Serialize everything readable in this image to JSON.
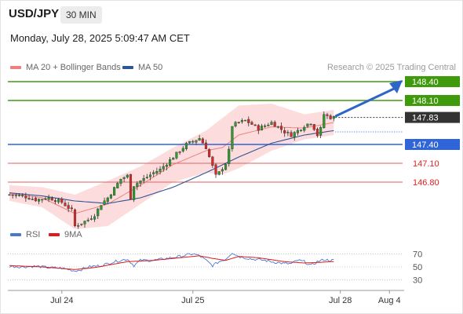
{
  "header": {
    "symbol": "USD/JPY",
    "timeframe": "30 MIN",
    "datetime": "Monday, July 28, 2025 5:09:47 AM CET"
  },
  "legend": {
    "ma20": {
      "label": "MA 20 + Bollinger Bands",
      "color": "#f08080"
    },
    "ma50": {
      "label": "MA 50",
      "color": "#2f5597"
    },
    "credit": "Research © 2025 Trading Central"
  },
  "rsi_legend": {
    "rsi": {
      "label": "RSI",
      "color": "#4a78d0"
    },
    "ma9": {
      "label": "9MA",
      "color": "#e01919"
    }
  },
  "chart_data": [
    {
      "type": "candlestick",
      "x_ticks": [
        "Jul 24",
        "Jul 25",
        "Jul 28",
        "Aug 4"
      ],
      "ylim": [
        146.2,
        148.5
      ],
      "current_price": "147.83",
      "levels": [
        {
          "value": 148.4,
          "label": "148.40",
          "kind": "resistance"
        },
        {
          "value": 148.1,
          "label": "148.10",
          "kind": "resistance"
        },
        {
          "value": 147.4,
          "label": "147.40",
          "kind": "pivot"
        },
        {
          "value": 147.1,
          "label": "147.10",
          "kind": "support"
        },
        {
          "value": 146.8,
          "label": "146.80",
          "kind": "support"
        }
      ],
      "forecast": {
        "from": 147.83,
        "to": 148.4
      },
      "close_points": [
        [
          0,
          146.6
        ],
        [
          4,
          146.58
        ],
        [
          8,
          146.52
        ],
        [
          12,
          146.55
        ],
        [
          16,
          146.48
        ],
        [
          19,
          146.35
        ],
        [
          20,
          146.1
        ],
        [
          22,
          146.15
        ],
        [
          24,
          146.2
        ],
        [
          26,
          146.28
        ],
        [
          28,
          146.45
        ],
        [
          30,
          146.55
        ],
        [
          32,
          146.7
        ],
        [
          34,
          146.85
        ],
        [
          36,
          146.9
        ],
        [
          37,
          146.55
        ],
        [
          38,
          146.75
        ],
        [
          40,
          146.82
        ],
        [
          42,
          146.88
        ],
        [
          44,
          146.95
        ],
        [
          46,
          147.0
        ],
        [
          48,
          147.1
        ],
        [
          50,
          147.2
        ],
        [
          52,
          147.3
        ],
        [
          54,
          147.4
        ],
        [
          56,
          147.45
        ],
        [
          58,
          147.5
        ],
        [
          60,
          147.35
        ],
        [
          61,
          147.2
        ],
        [
          62,
          147.05
        ],
        [
          63,
          146.9
        ],
        [
          64,
          146.95
        ],
        [
          66,
          147.1
        ],
        [
          67,
          147.3
        ],
        [
          68,
          147.7
        ],
        [
          70,
          147.75
        ],
        [
          72,
          147.78
        ],
        [
          74,
          147.72
        ],
        [
          76,
          147.65
        ],
        [
          78,
          147.7
        ],
        [
          80,
          147.75
        ],
        [
          82,
          147.68
        ],
        [
          84,
          147.6
        ],
        [
          86,
          147.55
        ],
        [
          88,
          147.62
        ],
        [
          90,
          147.7
        ],
        [
          92,
          147.75
        ],
        [
          93,
          147.66
        ],
        [
          94,
          147.55
        ],
        [
          95,
          147.65
        ],
        [
          96,
          147.88
        ],
        [
          97,
          147.85
        ],
        [
          98,
          147.83
        ]
      ],
      "ma50_points": [
        [
          0,
          146.63
        ],
        [
          10,
          146.58
        ],
        [
          20,
          146.5
        ],
        [
          30,
          146.46
        ],
        [
          40,
          146.55
        ],
        [
          50,
          146.72
        ],
        [
          60,
          146.95
        ],
        [
          70,
          147.2
        ],
        [
          80,
          147.42
        ],
        [
          90,
          147.55
        ],
        [
          99,
          147.62
        ]
      ],
      "band_points": [
        [
          0,
          146.5,
          146.62,
          146.75
        ],
        [
          10,
          146.4,
          146.55,
          146.72
        ],
        [
          20,
          146.05,
          146.3,
          146.6
        ],
        [
          30,
          146.1,
          146.45,
          146.82
        ],
        [
          40,
          146.45,
          146.75,
          147.05
        ],
        [
          50,
          146.8,
          147.08,
          147.35
        ],
        [
          60,
          146.95,
          147.3,
          147.62
        ],
        [
          65,
          146.92,
          147.35,
          147.82
        ],
        [
          70,
          147.02,
          147.55,
          148.02
        ],
        [
          80,
          147.3,
          147.68,
          148.05
        ],
        [
          90,
          147.48,
          147.66,
          147.88
        ],
        [
          99,
          147.55,
          147.75,
          147.95
        ]
      ]
    },
    {
      "type": "line",
      "name": "RSI",
      "ylim": [
        20,
        80
      ],
      "y_ticks": [
        "70",
        "50",
        "30"
      ],
      "rsi_points": [
        [
          0,
          51
        ],
        [
          4,
          50
        ],
        [
          8,
          51
        ],
        [
          12,
          49
        ],
        [
          16,
          48
        ],
        [
          20,
          44
        ],
        [
          22,
          46
        ],
        [
          24,
          50
        ],
        [
          28,
          52
        ],
        [
          32,
          58
        ],
        [
          36,
          62
        ],
        [
          38,
          52
        ],
        [
          40,
          60
        ],
        [
          44,
          60
        ],
        [
          48,
          63
        ],
        [
          52,
          66
        ],
        [
          56,
          70
        ],
        [
          58,
          67
        ],
        [
          60,
          60
        ],
        [
          62,
          52
        ],
        [
          64,
          58
        ],
        [
          66,
          62
        ],
        [
          68,
          72
        ],
        [
          70,
          66
        ],
        [
          74,
          62
        ],
        [
          78,
          60
        ],
        [
          80,
          58
        ],
        [
          84,
          55
        ],
        [
          86,
          55
        ],
        [
          88,
          60
        ],
        [
          90,
          58
        ],
        [
          92,
          52
        ],
        [
          94,
          58
        ],
        [
          96,
          61
        ],
        [
          98,
          60
        ]
      ],
      "ma9_points": [
        [
          0,
          52
        ],
        [
          10,
          50
        ],
        [
          20,
          46
        ],
        [
          26,
          49
        ],
        [
          36,
          58
        ],
        [
          44,
          60
        ],
        [
          52,
          64
        ],
        [
          58,
          67
        ],
        [
          62,
          63
        ],
        [
          66,
          60
        ],
        [
          70,
          66
        ],
        [
          76,
          64
        ],
        [
          84,
          58
        ],
        [
          90,
          56
        ],
        [
          95,
          57
        ],
        [
          98,
          58
        ]
      ]
    }
  ]
}
